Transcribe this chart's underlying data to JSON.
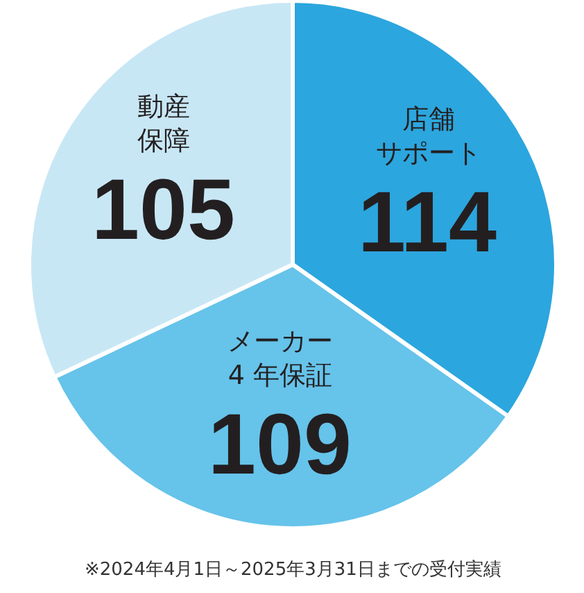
{
  "chart_data": {
    "type": "pie",
    "categories": [
      "店舗サポート",
      "メーカー4 年保証",
      "動産保障"
    ],
    "values": [
      114,
      109,
      105
    ],
    "colors": [
      "#2ca6de",
      "#66c3ea",
      "#c8e7f5"
    ],
    "data_labels": true,
    "annotations": [
      "※2024年4月1日～2025年3月31日までの受付実績"
    ]
  }
}
